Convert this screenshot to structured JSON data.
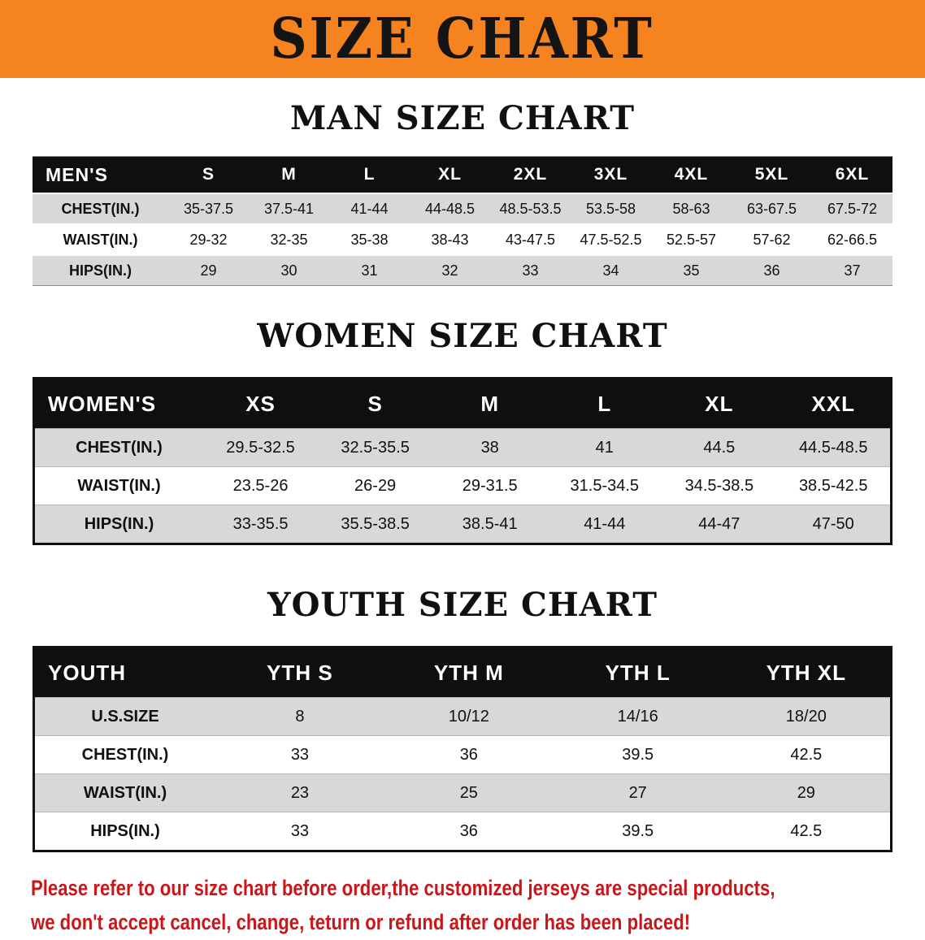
{
  "banner": {
    "title": "SIZE CHART"
  },
  "men": {
    "title": "MAN SIZE CHART",
    "header": [
      "MEN'S",
      "S",
      "M",
      "L",
      "XL",
      "2XL",
      "3XL",
      "4XL",
      "5XL",
      "6XL"
    ],
    "rows": [
      {
        "label": "CHEST(IN.)",
        "values": [
          "35-37.5",
          "37.5-41",
          "41-44",
          "44-48.5",
          "48.5-53.5",
          "53.5-58",
          "58-63",
          "63-67.5",
          "67.5-72"
        ]
      },
      {
        "label": "WAIST(IN.)",
        "values": [
          "29-32",
          "32-35",
          "35-38",
          "38-43",
          "43-47.5",
          "47.5-52.5",
          "52.5-57",
          "57-62",
          "62-66.5"
        ]
      },
      {
        "label": "HIPS(IN.)",
        "values": [
          "29",
          "30",
          "31",
          "32",
          "33",
          "34",
          "35",
          "36",
          "37"
        ]
      }
    ]
  },
  "women": {
    "title": "WOMEN SIZE CHART",
    "header": [
      "WOMEN'S",
      "XS",
      "S",
      "M",
      "L",
      "XL",
      "XXL"
    ],
    "rows": [
      {
        "label": "CHEST(IN.)",
        "values": [
          "29.5-32.5",
          "32.5-35.5",
          "38",
          "41",
          "44.5",
          "44.5-48.5"
        ]
      },
      {
        "label": "WAIST(IN.)",
        "values": [
          "23.5-26",
          "26-29",
          "29-31.5",
          "31.5-34.5",
          "34.5-38.5",
          "38.5-42.5"
        ]
      },
      {
        "label": "HIPS(IN.)",
        "values": [
          "33-35.5",
          "35.5-38.5",
          "38.5-41",
          "41-44",
          "44-47",
          "47-50"
        ]
      }
    ]
  },
  "youth": {
    "title": "YOUTH SIZE CHART",
    "header": [
      "YOUTH",
      "YTH S",
      "YTH M",
      "YTH L",
      "YTH XL"
    ],
    "rows": [
      {
        "label": "U.S.SIZE",
        "values": [
          "8",
          "10/12",
          "14/16",
          "18/20"
        ]
      },
      {
        "label": "CHEST(IN.)",
        "values": [
          "33",
          "36",
          "39.5",
          "42.5"
        ]
      },
      {
        "label": "WAIST(IN.)",
        "values": [
          "23",
          "25",
          "27",
          "29"
        ]
      },
      {
        "label": "HIPS(IN.)",
        "values": [
          "33",
          "36",
          "39.5",
          "42.5"
        ]
      }
    ]
  },
  "note": {
    "line1": "Please refer to our size chart before order,the customized jerseys are special products,",
    "line2": "we don't accept cancel, change, teturn or refund after order has been placed!"
  },
  "colors": {
    "banner_bg": "#F5831F",
    "banner_text": "#141414",
    "table_header_bg": "#0F0F0F",
    "table_header_text": "#FFFFFF",
    "row_alt_bg": "#D8D8D8",
    "note_text": "#C9161B"
  }
}
